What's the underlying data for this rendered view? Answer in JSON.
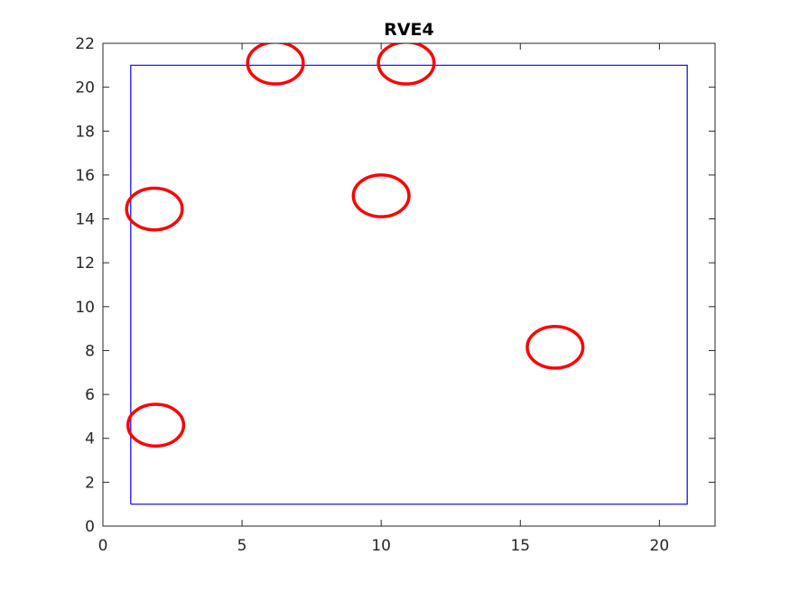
{
  "chart_data": {
    "type": "scatter",
    "title": "RVE4",
    "xlabel": "",
    "ylabel": "",
    "xlim": [
      0,
      22
    ],
    "ylim": [
      0,
      22
    ],
    "xticks": [
      0,
      5,
      10,
      15,
      20
    ],
    "yticks": [
      0,
      2,
      4,
      6,
      8,
      10,
      12,
      14,
      16,
      18,
      20,
      22
    ],
    "grid": false,
    "box_color": "#0000ff",
    "circle_color": "#ff0000",
    "boundary": {
      "x": [
        1,
        21,
        21,
        1,
        1
      ],
      "y": [
        1,
        1,
        21,
        21,
        1
      ]
    },
    "circles": [
      {
        "cx": 6.2,
        "cy": 21.1,
        "rx": 1.0,
        "ry": 0.95
      },
      {
        "cx": 10.9,
        "cy": 21.1,
        "rx": 1.0,
        "ry": 0.95
      },
      {
        "cx": 1.85,
        "cy": 14.45,
        "rx": 1.0,
        "ry": 0.95
      },
      {
        "cx": 10.0,
        "cy": 15.05,
        "rx": 1.0,
        "ry": 0.95
      },
      {
        "cx": 16.25,
        "cy": 8.15,
        "rx": 1.0,
        "ry": 0.95
      },
      {
        "cx": 1.9,
        "cy": 4.6,
        "rx": 1.0,
        "ry": 0.95
      }
    ]
  }
}
